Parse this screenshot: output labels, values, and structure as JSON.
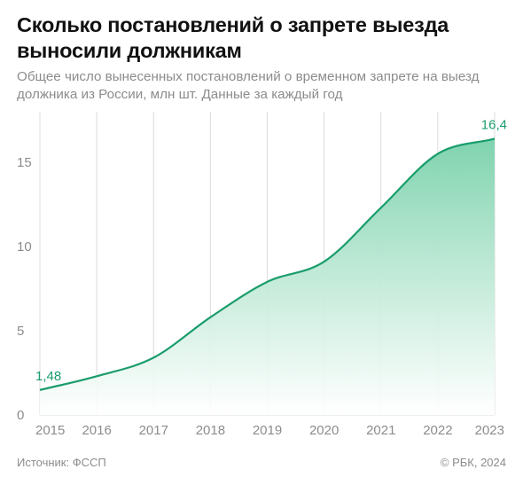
{
  "header": {
    "title": "Сколько постановлений о запрете выезда выносили должникам",
    "subtitle": "Общее число вынесенных постановлений о временном запрете на выезд должника из России, млн шт. Данные за каждый год"
  },
  "footer": {
    "source": "Источник: ФССП",
    "copyright": "© РБК, 2024"
  },
  "colors": {
    "accent": "#1a9d6c",
    "fill_top": "#7fd3ae",
    "grid": "#dcdcdc",
    "axis_text": "#8c8c8c"
  },
  "chart_data": {
    "type": "area",
    "categories": [
      "2015",
      "2016",
      "2017",
      "2018",
      "2019",
      "2020",
      "2021",
      "2022",
      "2023"
    ],
    "values": [
      1.48,
      2.3,
      3.4,
      5.8,
      7.9,
      9.1,
      12.3,
      15.5,
      16.4
    ],
    "labels": [
      {
        "index": 0,
        "text": "1,48"
      },
      {
        "index": 8,
        "text": "16,4"
      }
    ],
    "yticks": [
      "0",
      "5",
      "10",
      "15"
    ],
    "ylim": [
      0,
      18
    ],
    "grid": "vertical",
    "title": "Сколько постановлений о запрете выезда выносили должникам",
    "xlabel": "",
    "ylabel": ""
  }
}
